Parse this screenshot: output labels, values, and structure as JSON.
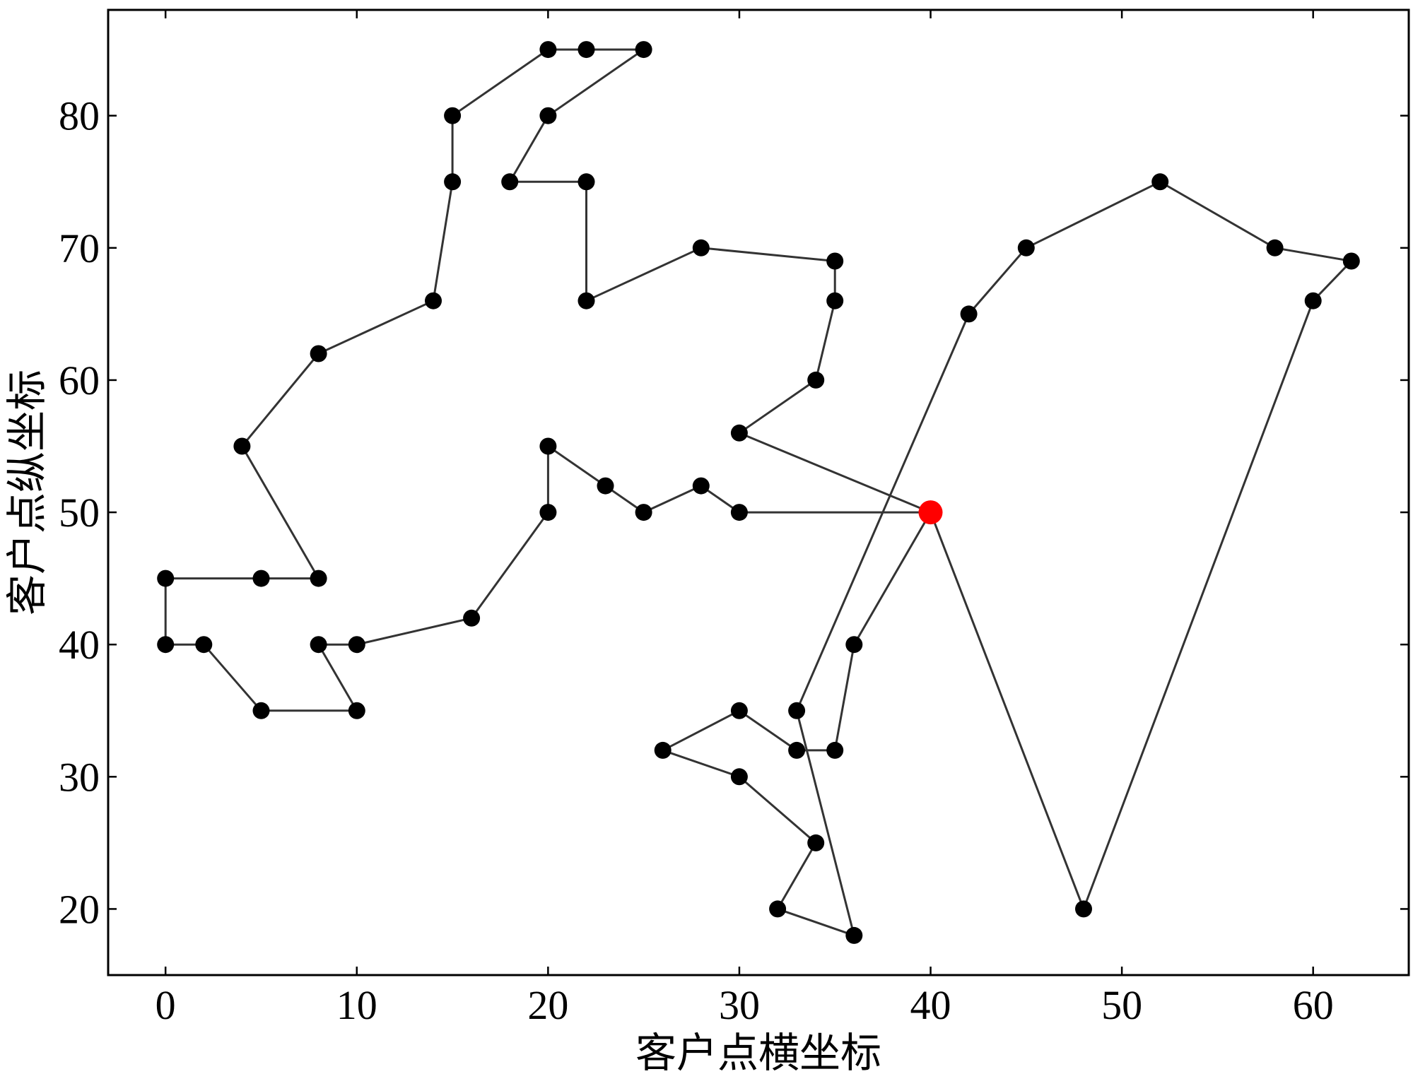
{
  "chart_data": {
    "type": "line",
    "title": "",
    "xlabel": "客户点横坐标",
    "ylabel": "客户点纵坐标",
    "xlim": [
      -3,
      65
    ],
    "ylim": [
      15,
      88
    ],
    "xticks": [
      0,
      10,
      20,
      30,
      40,
      50,
      60
    ],
    "yticks": [
      20,
      30,
      40,
      50,
      60,
      70,
      80
    ],
    "grid": false,
    "legend": "none",
    "route_color": "#333333",
    "point_color": "#000000",
    "depot_color": "#ff0000",
    "depot": [
      40,
      50
    ],
    "routes": [
      [
        [
          40,
          50
        ],
        [
          30,
          56
        ],
        [
          34,
          60
        ],
        [
          35,
          66
        ],
        [
          35,
          69
        ],
        [
          28,
          70
        ],
        [
          22,
          66
        ],
        [
          22,
          75
        ],
        [
          18,
          75
        ],
        [
          20,
          80
        ],
        [
          25,
          85
        ],
        [
          22,
          85
        ],
        [
          20,
          85
        ],
        [
          15,
          80
        ],
        [
          15,
          75
        ],
        [
          14,
          66
        ],
        [
          8,
          62
        ],
        [
          4,
          55
        ],
        [
          8,
          45
        ],
        [
          5,
          45
        ],
        [
          0,
          45
        ],
        [
          0,
          40
        ],
        [
          2,
          40
        ],
        [
          5,
          35
        ],
        [
          10,
          35
        ],
        [
          8,
          40
        ],
        [
          10,
          40
        ],
        [
          16,
          42
        ],
        [
          20,
          50
        ],
        [
          20,
          55
        ],
        [
          23,
          52
        ],
        [
          25,
          50
        ],
        [
          28,
          52
        ],
        [
          30,
          50
        ],
        [
          40,
          50
        ]
      ],
      [
        [
          40,
          50
        ],
        [
          36,
          40
        ],
        [
          35,
          32
        ],
        [
          33,
          32
        ],
        [
          30,
          35
        ],
        [
          26,
          32
        ],
        [
          30,
          30
        ],
        [
          34,
          25
        ],
        [
          32,
          20
        ],
        [
          36,
          18
        ],
        [
          33,
          35
        ],
        [
          42,
          65
        ],
        [
          45,
          70
        ],
        [
          52,
          75
        ],
        [
          58,
          70
        ],
        [
          62,
          69
        ],
        [
          60,
          66
        ],
        [
          48,
          20
        ],
        [
          40,
          50
        ]
      ]
    ]
  }
}
